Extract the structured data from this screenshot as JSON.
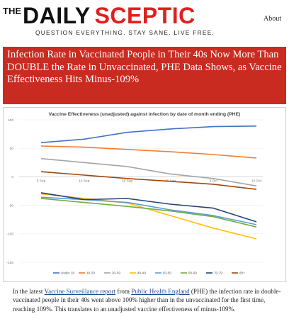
{
  "site": {
    "logo_the": "THE",
    "logo_daily": "DAILY",
    "logo_sceptic": "SCEPTIC",
    "tagline": "QUESTION EVERYTHING. STAY SANE. LIVE FREE.",
    "about_link": "About"
  },
  "article": {
    "headline": "Infection Rate in Vaccinated People in Their 40s Now More Than DOUBLE the Rate in Unvaccinated, PHE Data Shows, as Vaccine Effectiveness Hits Minus-109%",
    "body": {
      "text1": "In the latest ",
      "link1": "Vaccine Surveillance report",
      "text2": " from ",
      "link2": "Public Health England",
      "text3": " (PHE) the infection rate in double-vaccinated people in their 40s went above 100% higher than in the unvaccinated for the first time, reaching 109%. This translates to an unadjusted vaccine effectiveness of minus-109%."
    }
  },
  "colors": {
    "brand_red": "#e11f1f",
    "headline_bg": "#c92b20",
    "link": "#1b4a8a"
  },
  "chart_data": {
    "type": "line",
    "title": "Vaccine Effectiveness (unadjusted) against infection by date of month ending (PHE)",
    "categories": [
      "5 Sep",
      "12 Sep",
      "19 Sep",
      "26 Sep",
      "3 Oct",
      "10 Oct"
    ],
    "ylim": [
      -150,
      100
    ],
    "yticks": [
      100,
      50,
      0,
      -50,
      -100,
      -150
    ],
    "grid": true,
    "legend_position": "bottom",
    "series": [
      {
        "name": "Under 18",
        "color": "#4472c4",
        "values": [
          60,
          66,
          78,
          84,
          88,
          89
        ]
      },
      {
        "name": "18-29",
        "color": "#ed7d31",
        "values": [
          54,
          52,
          48,
          44,
          39,
          33
        ]
      },
      {
        "name": "30-39",
        "color": "#a5a5a5",
        "values": [
          32,
          25,
          18,
          5,
          -3,
          -16
        ]
      },
      {
        "name": "40-49",
        "color": "#ffc000",
        "values": [
          -30,
          -38,
          -46,
          -68,
          -90,
          -109
        ]
      },
      {
        "name": "50-59",
        "color": "#5b9bd5",
        "values": [
          -36,
          -40,
          -45,
          -58,
          -68,
          -84
        ]
      },
      {
        "name": "60-69",
        "color": "#70ad47",
        "values": [
          -38,
          -45,
          -52,
          -60,
          -70,
          -88
        ]
      },
      {
        "name": "70-79",
        "color": "#264478",
        "values": [
          -28,
          -40,
          -38,
          -48,
          -55,
          -79
        ]
      },
      {
        "name": "80+",
        "color": "#9e480e",
        "values": [
          9,
          3,
          -3,
          -8,
          -13,
          -22
        ]
      }
    ]
  }
}
